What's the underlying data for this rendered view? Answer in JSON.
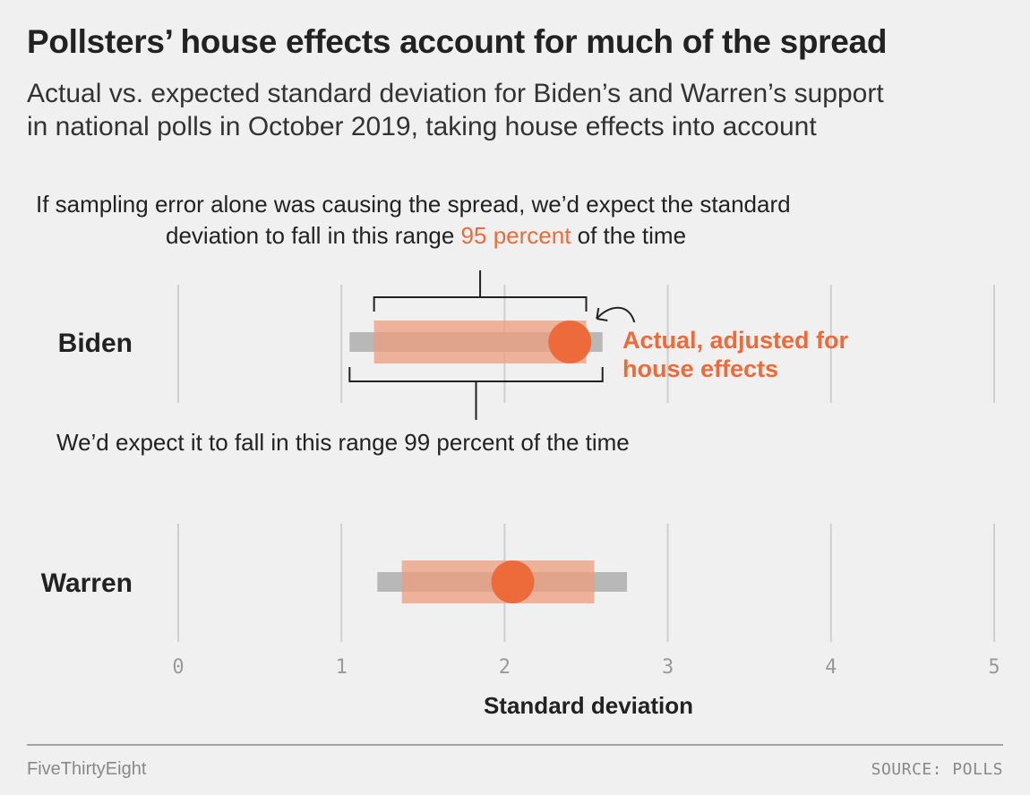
{
  "title": "Pollsters’ house effects account for much of the spread",
  "subtitle": {
    "line1": "Actual vs. expected standard deviation for Biden’s and Warren’s support",
    "line2": "in national polls in October 2019, taking house effects into account"
  },
  "annotations": {
    "range95_line1": "If sampling error alone was causing the spread, we’d expect the standard",
    "range95_line2_pre": "deviation to fall in this range ",
    "range95_highlight": "95 percent",
    "range95_line2_post": " of the time",
    "range99": "We’d expect it to fall in this range 99 percent of the time",
    "actual_line1": "Actual, adjusted for",
    "actual_line2": "house effects"
  },
  "chart_data": {
    "type": "range-dot",
    "xlabel": "Standard deviation",
    "xlim": [
      0,
      5
    ],
    "ticks": [
      0,
      1,
      2,
      3,
      4,
      5
    ],
    "rows": [
      {
        "name": "Biden",
        "range99": [
          1.05,
          2.6
        ],
        "range95": [
          1.2,
          2.5
        ],
        "actual": 2.4
      },
      {
        "name": "Warren",
        "range99": [
          1.22,
          2.75
        ],
        "range95": [
          1.37,
          2.55
        ],
        "actual": 2.05
      }
    ]
  },
  "colors": {
    "accent": "#ed6b3a",
    "range95": "#ed9c7e",
    "range99": "#b8b8b8",
    "grid": "#cfcfcf",
    "text": "#222222"
  },
  "footer": {
    "brand": "FiveThirtyEight",
    "source": "SOURCE: POLLS"
  }
}
